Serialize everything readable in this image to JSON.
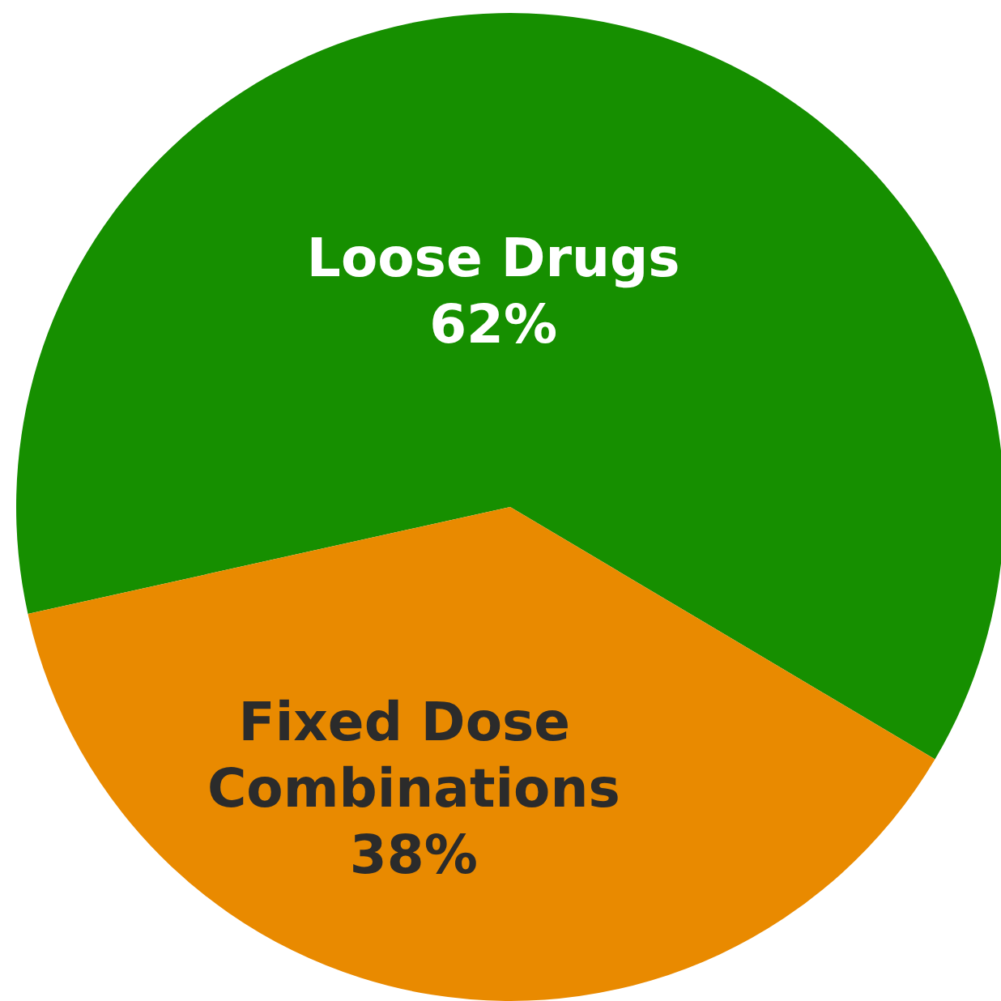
{
  "chart_data": {
    "type": "pie",
    "categories": [
      "Loose Drugs",
      "Fixed Dose Combinations"
    ],
    "values": [
      62,
      38
    ],
    "value_labels": [
      "62%",
      "38%"
    ],
    "colors": [
      "#168f00",
      "#e98a00"
    ]
  }
}
